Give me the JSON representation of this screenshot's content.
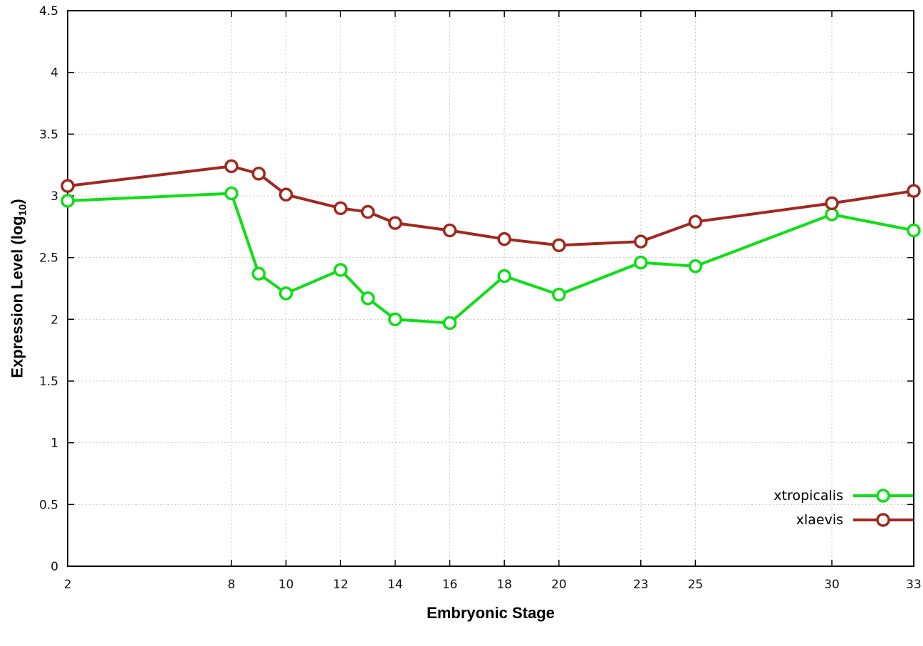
{
  "chart_data": {
    "type": "line",
    "title": "",
    "xlabel": "Embryonic Stage",
    "ylabel": "Expression Level (log10)",
    "ylabel_parts": {
      "prefix": "Expression Level (log",
      "sub": "10",
      "suffix": ")"
    },
    "xlim": [
      2,
      33
    ],
    "ylim": [
      0,
      4.5
    ],
    "grid": true,
    "legend_position": "bottom-right",
    "x_ticks": [
      2,
      8,
      10,
      12,
      14,
      16,
      18,
      20,
      23,
      25,
      30,
      33
    ],
    "x_tick_labels": [
      "2",
      "8",
      "10",
      "12",
      "14",
      "16",
      "18",
      "20",
      "23",
      "25",
      "30",
      "33"
    ],
    "y_ticks": [
      0,
      0.5,
      1,
      1.5,
      2,
      2.5,
      3,
      3.5,
      4,
      4.5
    ],
    "y_tick_labels": [
      "0",
      "0.5",
      "1",
      "1.5",
      "2",
      "2.5",
      "3",
      "3.5",
      "4",
      "4.5"
    ],
    "x": [
      2,
      8,
      9,
      10,
      12,
      13,
      14,
      16,
      18,
      20,
      23,
      25,
      30,
      33
    ],
    "series": [
      {
        "name": "xtropicalis",
        "color": "#0ddf15",
        "marker": "open-circle",
        "values": [
          2.96,
          3.02,
          2.37,
          2.21,
          2.4,
          2.17,
          2.0,
          1.97,
          2.35,
          2.2,
          2.46,
          2.43,
          2.85,
          2.72
        ]
      },
      {
        "name": "xlaevis",
        "color": "#a0281e",
        "marker": "open-circle",
        "values": [
          3.08,
          3.24,
          3.18,
          3.01,
          2.9,
          2.87,
          2.78,
          2.72,
          2.65,
          2.6,
          2.63,
          2.79,
          2.94,
          3.04
        ]
      }
    ]
  }
}
